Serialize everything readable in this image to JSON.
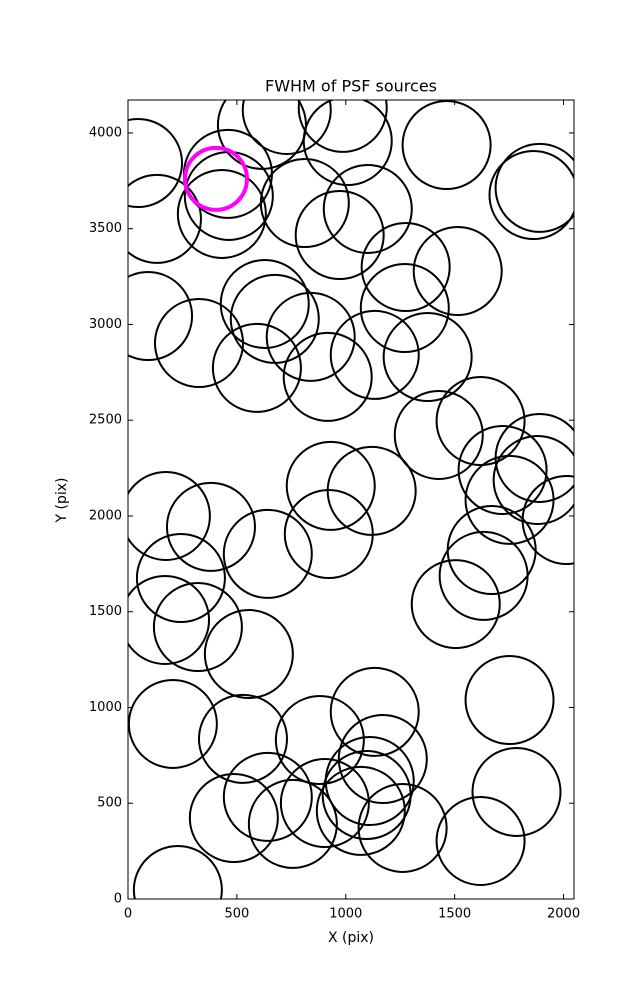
{
  "chart_data": {
    "type": "scatter",
    "title": "FWHM of PSF sources",
    "x_label": "X (pix)",
    "y_label": "Y (pix)",
    "xlim": [
      0,
      2048
    ],
    "ylim": [
      0,
      4172
    ],
    "xticks": [
      0,
      500,
      1000,
      1500,
      2000
    ],
    "yticks": [
      0,
      500,
      1000,
      1500,
      2000,
      2500,
      3000,
      3500,
      4000
    ],
    "series": [
      {
        "color": "#000000",
        "x": [
          229,
          486,
          757,
          642,
          904,
          1069,
          1096,
          1110,
          1261,
          1619,
          1784,
          1752,
          1133,
          1170,
          881,
          528,
          206,
          555,
          321,
          170,
          243,
          381,
          174,
          642,
          922,
          931,
          1119,
          1505,
          1633,
          1670,
          1752,
          1720,
          1619,
          1427,
          1881,
          1890,
          2014,
          592,
          326,
          92,
          628,
          674,
          839,
          917,
          1133,
          1376,
          1271,
          1275,
          1514,
          972,
          1101,
          812,
          431,
          459,
          463,
          133,
          46,
          615,
          729,
          1009,
          986,
          1463,
          1862,
          1890
        ],
        "values": [
          47,
          423,
          392,
          533,
          501,
          460,
          543,
          616,
          371,
          303,
          559,
          1039,
          977,
          731,
          830,
          836,
          914,
          1279,
          1420,
          1457,
          1676,
          1943,
          2000,
          1802,
          1906,
          2157,
          2131,
          1540,
          1687,
          1822,
          2084,
          2240,
          2496,
          2423,
          2188,
          2303,
          1979,
          2773,
          2903,
          3044,
          3107,
          3029,
          2935,
          2726,
          2841,
          2830,
          3086,
          3300,
          3279,
          3467,
          3603,
          3634,
          3577,
          3786,
          3671,
          3551,
          3843,
          4042,
          4120,
          3958,
          4131,
          3937,
          3676,
          3713
        ]
      },
      {
        "color": "#ff00ff",
        "x": [
          404
        ],
        "values": [
          3760
        ]
      }
    ]
  }
}
